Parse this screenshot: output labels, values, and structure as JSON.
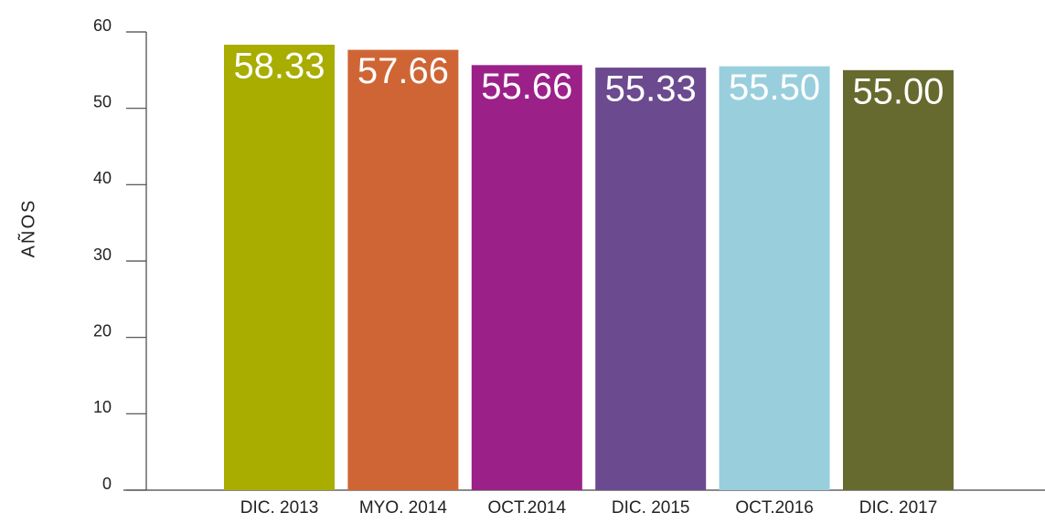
{
  "chart_data": {
    "type": "bar",
    "y_label": "AÑOS",
    "categories": [
      "DIC. 2013",
      "MYO. 2014",
      "OCT.2014",
      "DIC. 2015",
      "OCT.2016",
      "DIC. 2017"
    ],
    "values": [
      58.33,
      57.66,
      55.66,
      55.33,
      55.5,
      55
    ],
    "value_labels": [
      "58.33",
      "57.66",
      "55.66",
      "55.33",
      "55.50",
      "55.00"
    ],
    "colors": [
      "#a8ad00",
      "#cf6535",
      "#9b2188",
      "#6b4a8f",
      "#99cfdd",
      "#676a2e"
    ],
    "ylim": [
      0,
      60
    ],
    "yticks": [
      0,
      10,
      20,
      30,
      40,
      50,
      60
    ],
    "grid": false
  }
}
